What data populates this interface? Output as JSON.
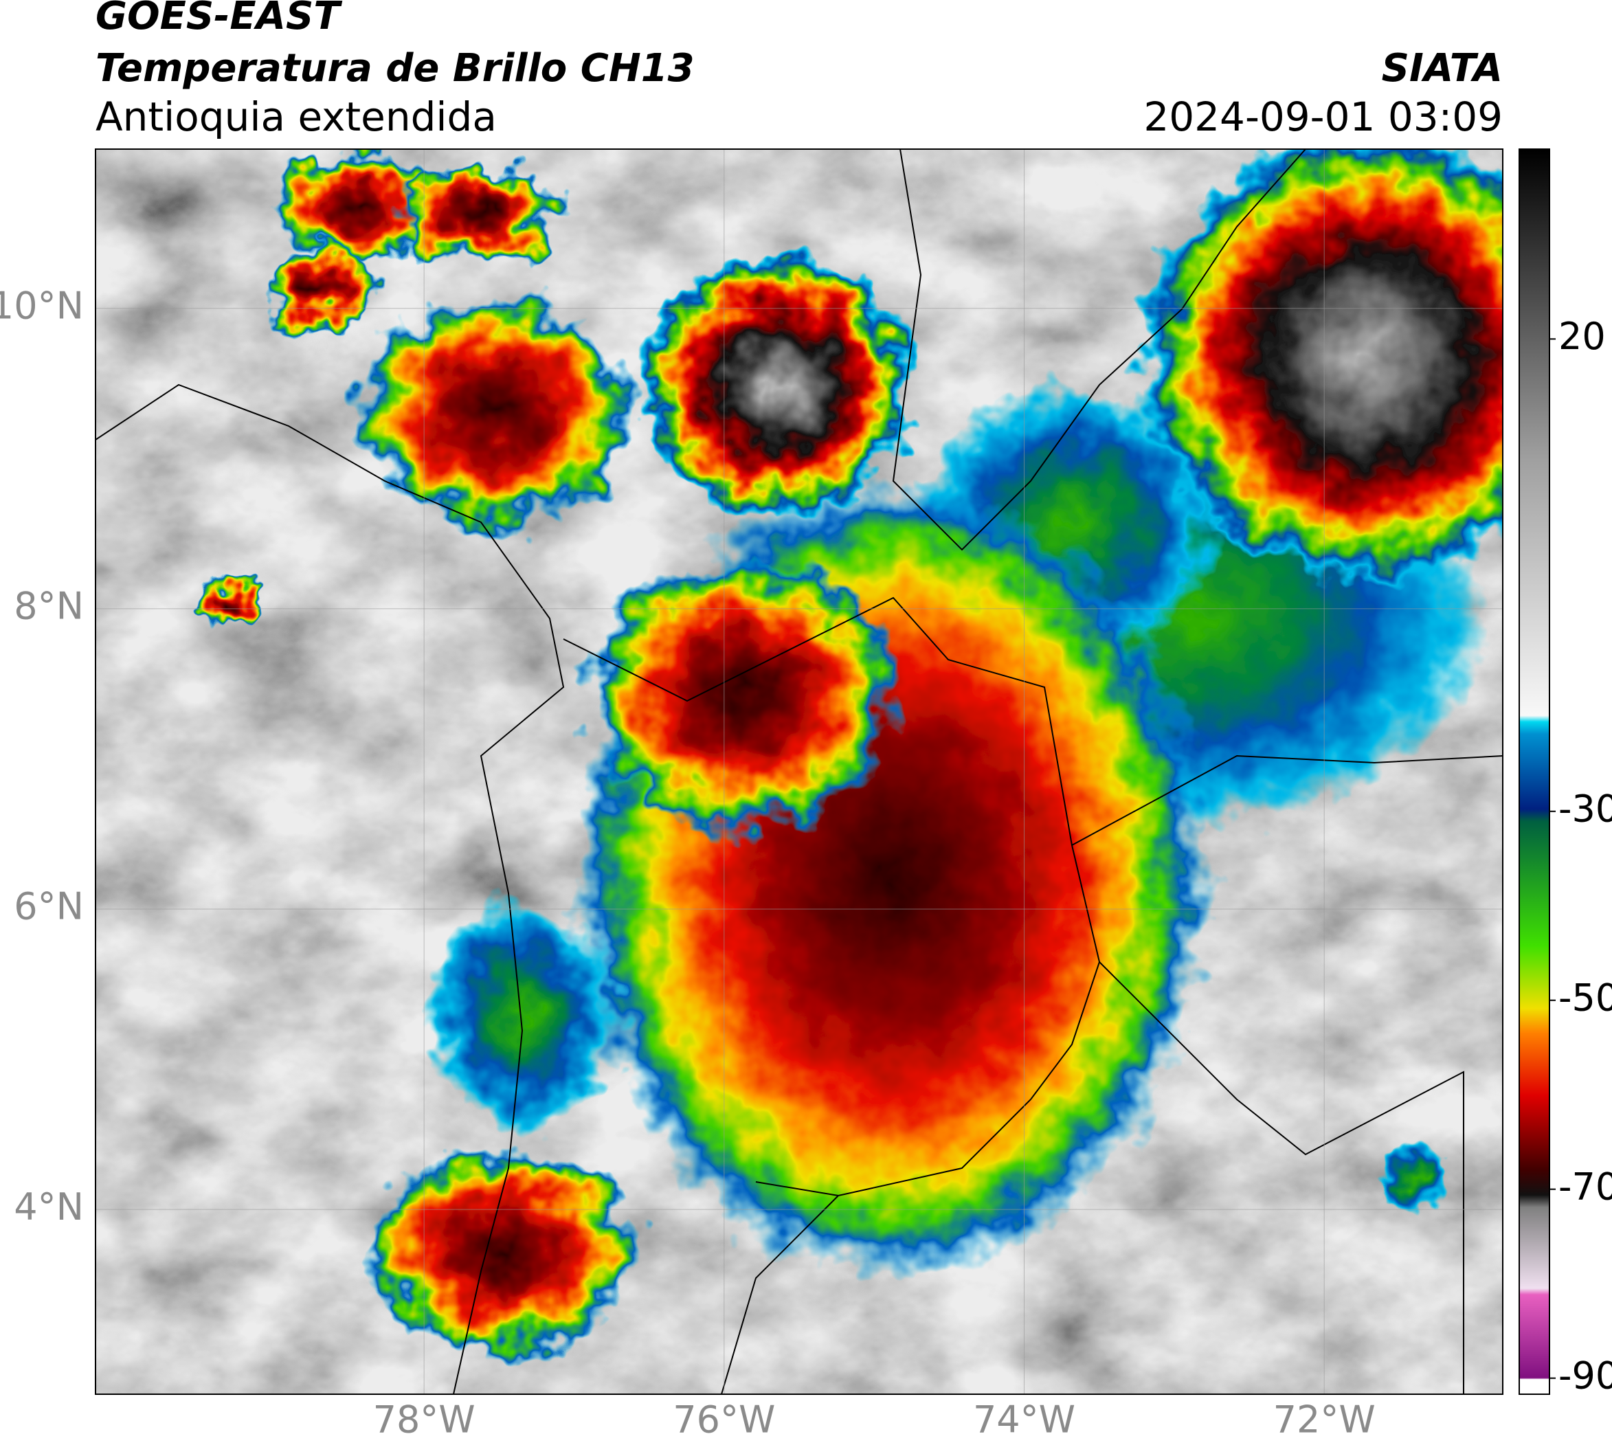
{
  "header": {
    "title_line1": "GOES-EAST",
    "title_line2": "Temperatura de Brillo CH13",
    "subtitle": "Antioquia extendida",
    "source": "SIATA",
    "datetime": "2024-09-01 03:09"
  },
  "map": {
    "lon_lim": [
      -80.19,
      -70.81
    ],
    "lat_lim": [
      2.77,
      11.06
    ],
    "lon_ticks": [
      {
        "value": -78,
        "label": "78°W"
      },
      {
        "value": -76,
        "label": "76°W"
      },
      {
        "value": -74,
        "label": "74°W"
      },
      {
        "value": -72,
        "label": "72°W"
      }
    ],
    "lat_ticks": [
      {
        "value": 10,
        "label": "10°N"
      },
      {
        "value": 8,
        "label": "8°N"
      },
      {
        "value": 6,
        "label": "6°N"
      },
      {
        "value": 4,
        "label": "4°N"
      }
    ]
  },
  "colorbar": {
    "lim": [
      -91.7,
      40.1
    ],
    "ticks": [
      20,
      -30,
      -50,
      -70,
      -90
    ]
  }
}
